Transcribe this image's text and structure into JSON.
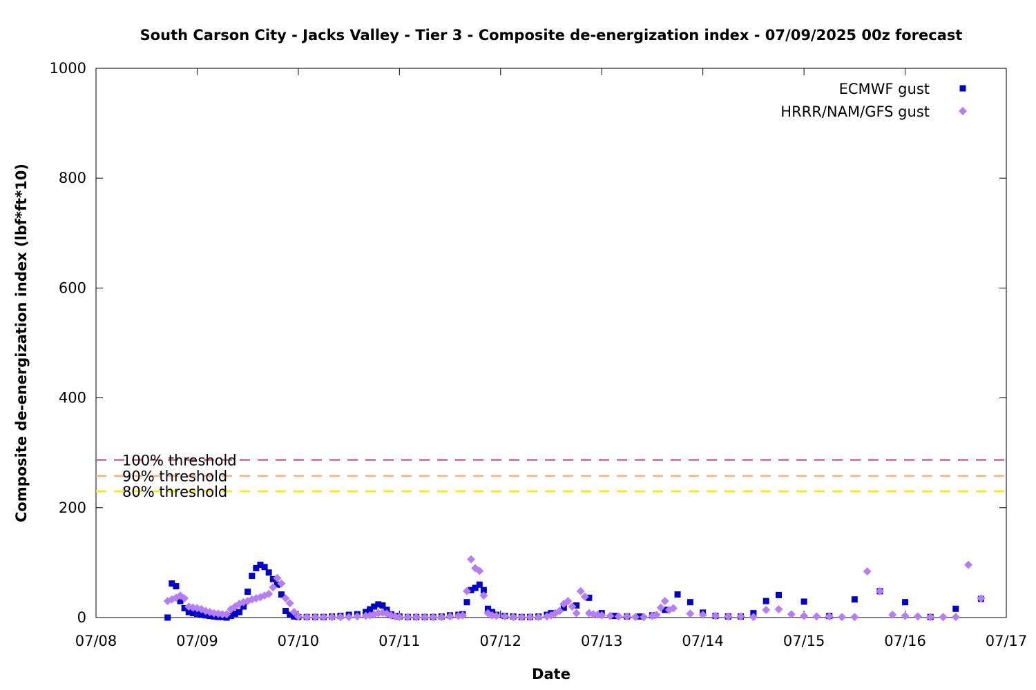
{
  "chart_data": {
    "type": "scatter",
    "title": "South Carson City - Jacks Valley - Tier 3 - Composite de-energization index - 07/09/2025 00z forecast",
    "xlabel": "Date",
    "ylabel": "Composite de-energization index (lbf*ft*10)",
    "xlim": [
      "07/08",
      "07/17"
    ],
    "ylim": [
      0,
      1000
    ],
    "x_ticks": [
      "07/08",
      "07/09",
      "07/10",
      "07/11",
      "07/12",
      "07/13",
      "07/14",
      "07/15",
      "07/16",
      "07/17"
    ],
    "y_ticks": [
      0,
      200,
      400,
      600,
      800,
      1000
    ],
    "legend_position": "top-right",
    "grid": false,
    "thresholds": [
      {
        "label": "100% threshold",
        "value": 287,
        "color": "#d6607a"
      },
      {
        "label": "90% threshold",
        "value": 258,
        "color": "#fdb07a"
      },
      {
        "label": "80% threshold",
        "value": 230,
        "color": "#f0f000"
      }
    ],
    "series": [
      {
        "name": "ECMWF gust",
        "marker": "square",
        "color": "#0000cc",
        "points": [
          [
            "07/08 17:00",
            0
          ],
          [
            "07/08 18:00",
            62
          ],
          [
            "07/08 19:00",
            57
          ],
          [
            "07/08 20:00",
            30
          ],
          [
            "07/08 21:00",
            17
          ],
          [
            "07/08 22:00",
            10
          ],
          [
            "07/08 23:00",
            8
          ],
          [
            "07/09 00:00",
            7
          ],
          [
            "07/09 01:00",
            5
          ],
          [
            "07/09 02:00",
            4
          ],
          [
            "07/09 03:00",
            3
          ],
          [
            "07/09 04:00",
            2
          ],
          [
            "07/09 05:00",
            1
          ],
          [
            "07/09 06:00",
            1
          ],
          [
            "07/09 07:00",
            0
          ],
          [
            "07/09 08:00",
            3
          ],
          [
            "07/09 09:00",
            7
          ],
          [
            "07/09 10:00",
            10
          ],
          [
            "07/09 11:00",
            20
          ],
          [
            "07/09 12:00",
            47
          ],
          [
            "07/09 13:00",
            76
          ],
          [
            "07/09 14:00",
            90
          ],
          [
            "07/09 15:00",
            96
          ],
          [
            "07/09 16:00",
            92
          ],
          [
            "07/09 17:00",
            82
          ],
          [
            "07/09 18:00",
            70
          ],
          [
            "07/09 19:00",
            60
          ],
          [
            "07/09 20:00",
            42
          ],
          [
            "07/09 21:00",
            12
          ],
          [
            "07/09 22:00",
            5
          ],
          [
            "07/09 23:00",
            2
          ],
          [
            "07/10 00:00",
            1
          ],
          [
            "07/10 02:00",
            1
          ],
          [
            "07/10 04:00",
            1
          ],
          [
            "07/10 06:00",
            1
          ],
          [
            "07/10 08:00",
            2
          ],
          [
            "07/10 10:00",
            3
          ],
          [
            "07/10 12:00",
            5
          ],
          [
            "07/10 14:00",
            6
          ],
          [
            "07/10 16:00",
            10
          ],
          [
            "07/10 17:00",
            15
          ],
          [
            "07/10 18:00",
            20
          ],
          [
            "07/10 19:00",
            24
          ],
          [
            "07/10 20:00",
            22
          ],
          [
            "07/10 21:00",
            14
          ],
          [
            "07/10 22:00",
            6
          ],
          [
            "07/10 23:00",
            3
          ],
          [
            "07/11 00:00",
            2
          ],
          [
            "07/11 02:00",
            1
          ],
          [
            "07/11 04:00",
            1
          ],
          [
            "07/11 06:00",
            1
          ],
          [
            "07/11 08:00",
            1
          ],
          [
            "07/11 10:00",
            2
          ],
          [
            "07/11 12:00",
            4
          ],
          [
            "07/11 14:00",
            5
          ],
          [
            "07/11 15:00",
            6
          ],
          [
            "07/11 16:00",
            28
          ],
          [
            "07/11 17:00",
            50
          ],
          [
            "07/11 18:00",
            54
          ],
          [
            "07/11 19:00",
            60
          ],
          [
            "07/11 20:00",
            50
          ],
          [
            "07/11 21:00",
            16
          ],
          [
            "07/11 22:00",
            10
          ],
          [
            "07/11 23:00",
            5
          ],
          [
            "07/12 01:00",
            3
          ],
          [
            "07/12 03:00",
            2
          ],
          [
            "07/12 05:00",
            1
          ],
          [
            "07/12 07:00",
            1
          ],
          [
            "07/12 09:00",
            2
          ],
          [
            "07/12 11:00",
            5
          ],
          [
            "07/12 12:00",
            8
          ],
          [
            "07/12 15:00",
            18
          ],
          [
            "07/12 18:00",
            22
          ],
          [
            "07/12 21:00",
            36
          ],
          [
            "07/13 00:00",
            8
          ],
          [
            "07/13 03:00",
            3
          ],
          [
            "07/13 06:00",
            2
          ],
          [
            "07/13 09:00",
            2
          ],
          [
            "07/13 12:00",
            4
          ],
          [
            "07/13 15:00",
            14
          ],
          [
            "07/13 18:00",
            42
          ],
          [
            "07/13 21:00",
            28
          ],
          [
            "07/14 00:00",
            9
          ],
          [
            "07/14 03:00",
            3
          ],
          [
            "07/14 06:00",
            2
          ],
          [
            "07/14 09:00",
            2
          ],
          [
            "07/14 12:00",
            8
          ],
          [
            "07/14 15:00",
            30
          ],
          [
            "07/14 18:00",
            41
          ],
          [
            "07/15 00:00",
            29
          ],
          [
            "07/15 06:00",
            3
          ],
          [
            "07/15 12:00",
            33
          ],
          [
            "07/15 18:00",
            48
          ],
          [
            "07/16 00:00",
            28
          ],
          [
            "07/16 06:00",
            1
          ],
          [
            "07/16 12:00",
            16
          ],
          [
            "07/16 18:00",
            34
          ]
        ]
      },
      {
        "name": "HRRR/NAM/GFS gust",
        "marker": "diamond",
        "color": "#b57ef5",
        "points": [
          [
            "07/08 17:00",
            30
          ],
          [
            "07/08 18:00",
            33
          ],
          [
            "07/08 19:00",
            36
          ],
          [
            "07/08 20:00",
            40
          ],
          [
            "07/08 21:00",
            35
          ],
          [
            "07/08 22:00",
            20
          ],
          [
            "07/08 23:00",
            18
          ],
          [
            "07/09 00:00",
            17
          ],
          [
            "07/09 01:00",
            15
          ],
          [
            "07/09 02:00",
            12
          ],
          [
            "07/09 03:00",
            10
          ],
          [
            "07/09 04:00",
            8
          ],
          [
            "07/09 05:00",
            7
          ],
          [
            "07/09 06:00",
            6
          ],
          [
            "07/09 07:00",
            6
          ],
          [
            "07/09 08:00",
            15
          ],
          [
            "07/09 09:00",
            20
          ],
          [
            "07/09 10:00",
            25
          ],
          [
            "07/09 11:00",
            28
          ],
          [
            "07/09 12:00",
            30
          ],
          [
            "07/09 13:00",
            33
          ],
          [
            "07/09 14:00",
            35
          ],
          [
            "07/09 15:00",
            37
          ],
          [
            "07/09 16:00",
            40
          ],
          [
            "07/09 17:00",
            43
          ],
          [
            "07/09 18:00",
            55
          ],
          [
            "07/09 19:00",
            72
          ],
          [
            "07/09 20:00",
            62
          ],
          [
            "07/09 21:00",
            35
          ],
          [
            "07/09 22:00",
            26
          ],
          [
            "07/09 23:00",
            10
          ],
          [
            "07/10 00:00",
            2
          ],
          [
            "07/10 02:00",
            1
          ],
          [
            "07/10 04:00",
            1
          ],
          [
            "07/10 06:00",
            1
          ],
          [
            "07/10 08:00",
            1
          ],
          [
            "07/10 10:00",
            1
          ],
          [
            "07/10 12:00",
            1
          ],
          [
            "07/10 14:00",
            2
          ],
          [
            "07/10 16:00",
            3
          ],
          [
            "07/10 17:00",
            4
          ],
          [
            "07/10 18:00",
            6
          ],
          [
            "07/10 19:00",
            8
          ],
          [
            "07/10 20:00",
            9
          ],
          [
            "07/10 21:00",
            7
          ],
          [
            "07/10 22:00",
            4
          ],
          [
            "07/10 23:00",
            2
          ],
          [
            "07/11 00:00",
            1
          ],
          [
            "07/11 02:00",
            1
          ],
          [
            "07/11 04:00",
            1
          ],
          [
            "07/11 06:00",
            1
          ],
          [
            "07/11 08:00",
            1
          ],
          [
            "07/11 10:00",
            1
          ],
          [
            "07/11 12:00",
            2
          ],
          [
            "07/11 14:00",
            3
          ],
          [
            "07/11 15:00",
            4
          ],
          [
            "07/11 16:00",
            48
          ],
          [
            "07/11 17:00",
            106
          ],
          [
            "07/11 18:00",
            90
          ],
          [
            "07/11 19:00",
            85
          ],
          [
            "07/11 20:00",
            40
          ],
          [
            "07/11 21:00",
            8
          ],
          [
            "07/11 22:00",
            4
          ],
          [
            "07/11 23:00",
            3
          ],
          [
            "07/12 01:00",
            2
          ],
          [
            "07/12 03:00",
            1
          ],
          [
            "07/12 05:00",
            1
          ],
          [
            "07/12 07:00",
            1
          ],
          [
            "07/12 09:00",
            1
          ],
          [
            "07/12 11:00",
            2
          ],
          [
            "07/12 12:00",
            4
          ],
          [
            "07/12 13:00",
            8
          ],
          [
            "07/12 14:00",
            12
          ],
          [
            "07/12 15:00",
            25
          ],
          [
            "07/12 16:00",
            30
          ],
          [
            "07/12 17:00",
            20
          ],
          [
            "07/12 18:00",
            8
          ],
          [
            "07/12 19:00",
            48
          ],
          [
            "07/12 20:00",
            38
          ],
          [
            "07/12 21:00",
            8
          ],
          [
            "07/12 22:00",
            6
          ],
          [
            "07/12 23:00",
            5
          ],
          [
            "07/13 00:00",
            4
          ],
          [
            "07/13 02:00",
            3
          ],
          [
            "07/13 04:00",
            2
          ],
          [
            "07/13 06:00",
            2
          ],
          [
            "07/13 08:00",
            1
          ],
          [
            "07/13 10:00",
            1
          ],
          [
            "07/13 12:00",
            3
          ],
          [
            "07/13 13:00",
            5
          ],
          [
            "07/13 14:00",
            18
          ],
          [
            "07/13 15:00",
            30
          ],
          [
            "07/13 16:00",
            14
          ],
          [
            "07/13 17:00",
            17
          ],
          [
            "07/13 21:00",
            7
          ],
          [
            "07/14 00:00",
            5
          ],
          [
            "07/14 03:00",
            3
          ],
          [
            "07/14 06:00",
            2
          ],
          [
            "07/14 09:00",
            2
          ],
          [
            "07/14 12:00",
            1
          ],
          [
            "07/14 15:00",
            14
          ],
          [
            "07/14 18:00",
            15
          ],
          [
            "07/14 21:00",
            6
          ],
          [
            "07/15 00:00",
            3
          ],
          [
            "07/15 03:00",
            2
          ],
          [
            "07/15 06:00",
            2
          ],
          [
            "07/15 09:00",
            1
          ],
          [
            "07/15 12:00",
            1
          ],
          [
            "07/15 15:00",
            84
          ],
          [
            "07/15 18:00",
            48
          ],
          [
            "07/15 21:00",
            5
          ],
          [
            "07/16 00:00",
            3
          ],
          [
            "07/16 03:00",
            2
          ],
          [
            "07/16 06:00",
            1
          ],
          [
            "07/16 09:00",
            1
          ],
          [
            "07/16 12:00",
            1
          ],
          [
            "07/16 15:00",
            96
          ],
          [
            "07/16 18:00",
            35
          ]
        ]
      }
    ]
  }
}
